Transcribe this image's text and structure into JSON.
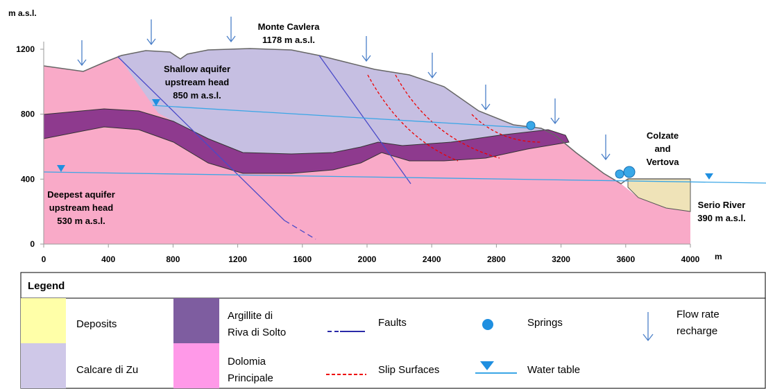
{
  "axes": {
    "y_label": "m a.s.l.",
    "x_label": "m",
    "y_ticks": [
      0,
      400,
      800,
      1200
    ],
    "x_ticks": [
      0,
      400,
      800,
      1200,
      1600,
      2000,
      2400,
      2800,
      3200,
      3600,
      4000
    ]
  },
  "annotations": {
    "monte_cavlera": [
      "Monte Cavlera",
      "1178 m a.s.l."
    ],
    "shallow_aquifer": [
      "Shallow aquifer",
      "upstream head",
      "850 m a.s.l."
    ],
    "deepest_aquifer": [
      "Deepest aquifer",
      "upstream head",
      "530 m a.s.l."
    ],
    "colzate": [
      "Colzate",
      "and",
      "Vertova"
    ],
    "serio": [
      "Serio River",
      "390 m a.s.l."
    ]
  },
  "legend": {
    "title": "Legend",
    "deposits": "Deposits",
    "calcare": "Calcare di Zu",
    "argillite": [
      "Argillite di",
      "Riva di Solto"
    ],
    "dolomia": [
      "Dolomia",
      "Principale"
    ],
    "faults": "Faults",
    "slip": "Slip Surfaces",
    "springs": "Springs",
    "water_table": "Water table",
    "recharge": [
      "Flow rate",
      "recharge"
    ]
  }
}
